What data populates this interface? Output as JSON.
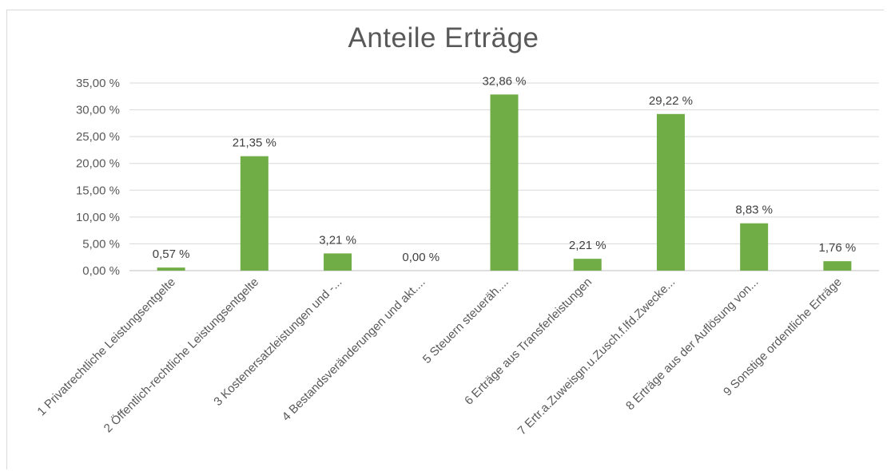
{
  "chart_data": {
    "type": "bar",
    "title": "Anteile Erträge",
    "xlabel": "",
    "ylabel": "",
    "ylim": [
      0,
      35
    ],
    "yticks": [
      "0,00 %",
      "5,00 %",
      "10,00 %",
      "15,00 %",
      "20,00 %",
      "25,00 %",
      "30,00 %",
      "35,00 %"
    ],
    "grid": true,
    "legend": "none",
    "bar_color": "#70ad47",
    "categories": [
      "1 Privatrechtliche Leistungsentgelte",
      "2 Öffentlich-rechtliche Leistungsentgelte",
      "3 Kostenersatzleistungen und -...",
      "4 Bestandsveränderungen und akt....",
      "5 Steuern steueräh....",
      "6 Erträge aus Transferleistungen",
      "7 Ertr.a.Zuweisgn.u.Zusch.f.lfd.Zwecke...",
      "8 Erträge aus der Auflösung von...",
      "9 Sonstige ordentliche Erträge"
    ],
    "values": [
      0.57,
      21.35,
      3.21,
      0.0,
      32.86,
      2.21,
      29.22,
      8.83,
      1.76
    ],
    "data_labels": [
      "0,57 %",
      "21,35 %",
      "3,21 %",
      "0,00 %",
      "32,86 %",
      "2,21 %",
      "29,22 %",
      "8,83 %",
      "1,76 %"
    ]
  }
}
